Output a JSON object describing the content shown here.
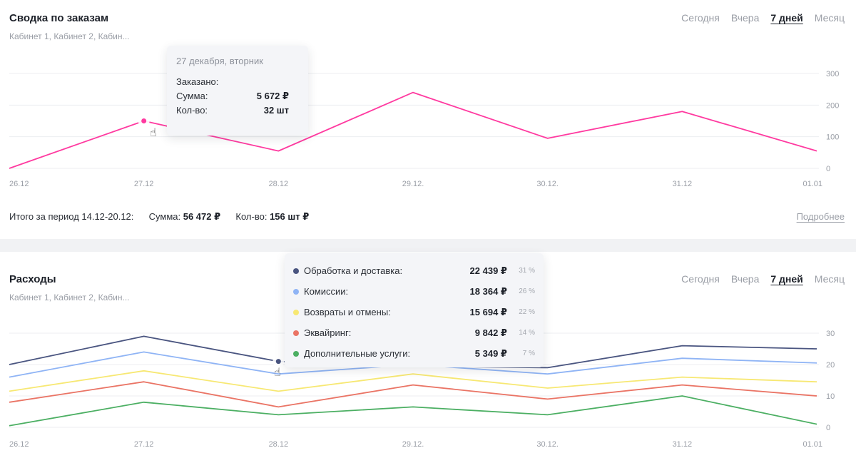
{
  "orders": {
    "title": "Сводка по заказам",
    "subtitle": "Кабинет 1, Кабинет 2, Кабин...",
    "periods": [
      "Сегодня",
      "Вчера",
      "7 дней",
      "Месяц"
    ],
    "active_period": "7 дней",
    "summary": {
      "label": "Итого за период 14.12-20.12:",
      "sum_label": "Сумма:",
      "sum_value": "56 472 ₽",
      "qty_label": "Кол-во:",
      "qty_value": "156 шт ₽"
    },
    "more_link": "Подробнее",
    "tooltip": {
      "date": "27 декабря, вторник",
      "heading": "Заказано:",
      "sum_label": "Сумма:",
      "sum_value": "5 672 ₽",
      "qty_label": "Кол-во:",
      "qty_value": "32 шт"
    }
  },
  "expenses": {
    "title": "Расходы",
    "subtitle": "Кабинет 1, Кабинет 2, Кабин...",
    "periods": [
      "Сегодня",
      "Вчера",
      "7 дней",
      "Месяц"
    ],
    "active_period": "7 дней",
    "tooltip": {
      "rows": [
        {
          "label": "Обработка и доставка:",
          "amount": "22 439 ₽",
          "percent": "31 %",
          "color": "#4a5580"
        },
        {
          "label": "Комиссии:",
          "amount": "18 364 ₽",
          "percent": "26 %",
          "color": "#8fb4f5"
        },
        {
          "label": "Возвраты и отмены:",
          "amount": "15 694 ₽",
          "percent": "22 %",
          "color": "#f7e873"
        },
        {
          "label": "Эквайринг:",
          "amount": "9 842 ₽",
          "percent": "14 %",
          "color": "#ea7465"
        },
        {
          "label": "Дополнительные услуги:",
          "amount": "5 349 ₽",
          "percent": "7 %",
          "color": "#4caf63"
        }
      ]
    }
  },
  "chart_data": [
    {
      "type": "line",
      "x": [
        "26.12",
        "27.12",
        "28.12",
        "29.12.",
        "30.12.",
        "31.12",
        "01.01"
      ],
      "y_ticks": [
        "300",
        "200",
        "100",
        "0"
      ],
      "ylim": [
        0,
        300
      ],
      "grid": true,
      "series": [
        {
          "color": "#ff3aa0",
          "values": [
            0,
            150,
            55,
            240,
            95,
            180,
            55
          ]
        }
      ],
      "highlight_index": 1
    },
    {
      "type": "line",
      "x": [
        "26.12",
        "27.12",
        "28.12",
        "29.12.",
        "30.12.",
        "31.12",
        "01.01"
      ],
      "y_ticks": [
        "30",
        "20",
        "10",
        "0"
      ],
      "ylim": [
        0,
        30
      ],
      "grid": true,
      "series": [
        {
          "color": "#4a5580",
          "values": [
            20,
            29,
            21,
            19.5,
            19,
            26,
            25
          ]
        },
        {
          "color": "#8fb4f5",
          "values": [
            16,
            24,
            17,
            20,
            17,
            22,
            20.5
          ]
        },
        {
          "color": "#f7e873",
          "values": [
            11.5,
            18,
            11.5,
            17,
            12.5,
            16,
            14.5
          ]
        },
        {
          "color": "#ea7465",
          "values": [
            8,
            14.5,
            6.5,
            13.5,
            9,
            13.5,
            10
          ]
        },
        {
          "color": "#4caf63",
          "values": [
            0.5,
            8,
            4,
            6.5,
            4,
            10,
            1
          ]
        }
      ],
      "highlight_index": 2
    }
  ]
}
